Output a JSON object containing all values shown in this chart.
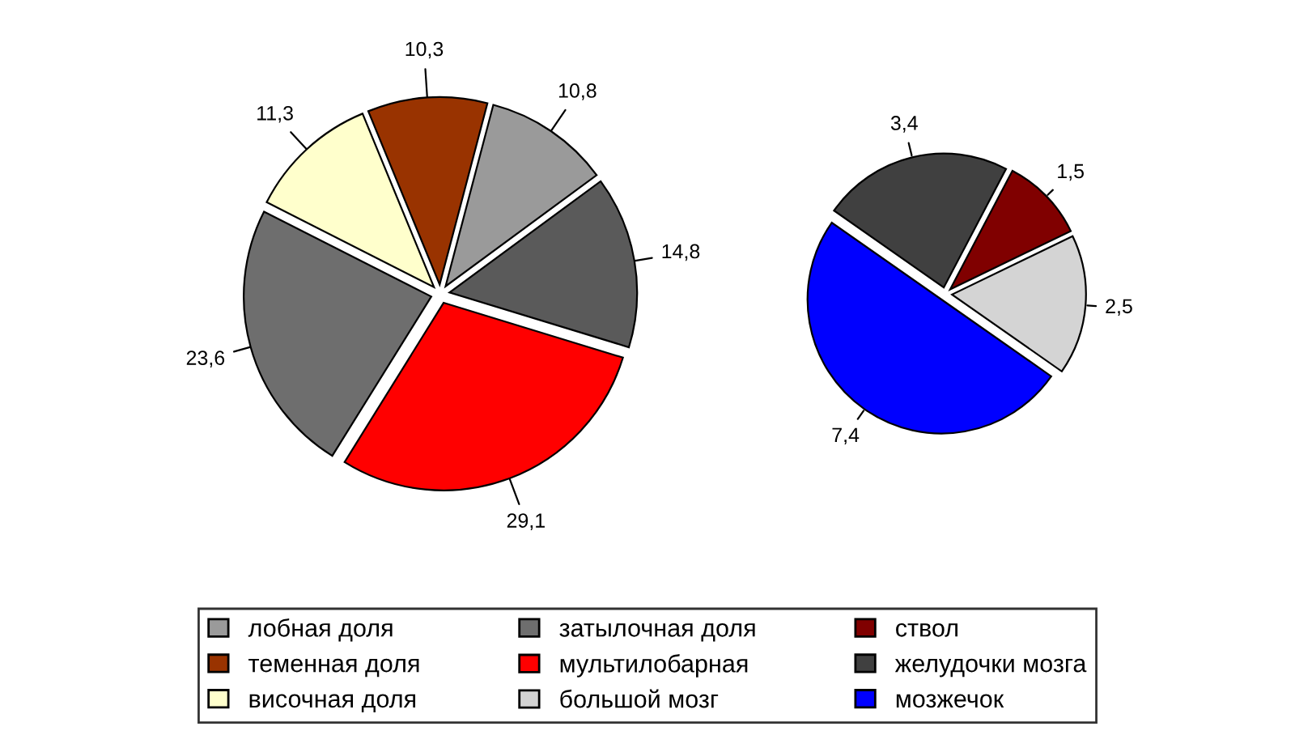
{
  "chart_data": [
    {
      "type": "pie",
      "categories": [
        null,
        "лобная доля",
        "теменная доля",
        "височная доля",
        "затылочная доля",
        "мультилобарная"
      ],
      "values": [
        14.8,
        10.8,
        10.3,
        11.3,
        23.6,
        29.1
      ],
      "value_labels": [
        "14,8",
        "10,8",
        "10,3",
        "11,3",
        "23,6",
        "29,1"
      ],
      "colors": [
        "#5a5a5a",
        "#9a9a9a",
        "#993300",
        "#ffffcc",
        "#6e6e6e",
        "#ff0000"
      ],
      "legend": "bottom"
    },
    {
      "type": "pie",
      "categories": [
        "большой мозг",
        "ствол",
        "желудочки мозга",
        "мозжечок"
      ],
      "values": [
        2.5,
        1.5,
        3.4,
        7.4
      ],
      "value_labels": [
        "2,5",
        "1,5",
        "3,4",
        "7,4"
      ],
      "colors": [
        "#d4d4d4",
        "#800000",
        "#404040",
        "#0000ff"
      ],
      "legend": "bottom"
    }
  ]
}
